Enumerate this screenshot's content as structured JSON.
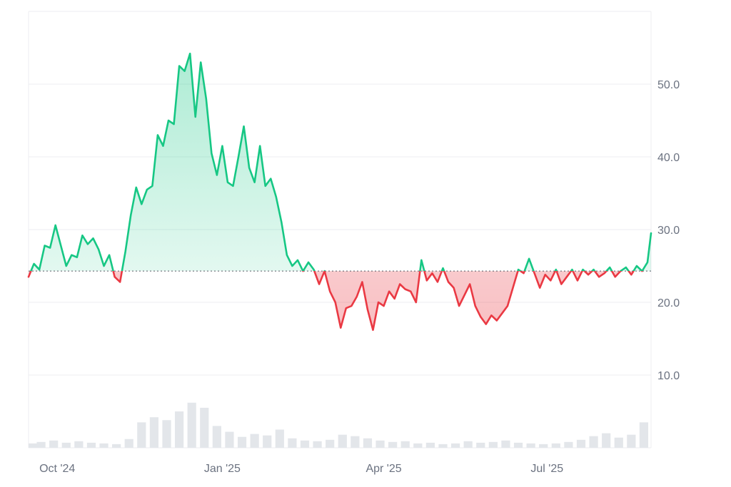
{
  "colors": {
    "up_line": "#16c784",
    "down_line": "#ea3943",
    "up_fill": "#16c784",
    "down_fill": "#ea3943",
    "grid": "#eceef1",
    "baseline": "#555b66",
    "volume": "#e3e6ea",
    "text": "#6b7280"
  },
  "chart_data": {
    "type": "line",
    "baseline": 24.3,
    "ylim": [
      0,
      60
    ],
    "xlim": [
      "2024-09-15",
      "2025-08-28"
    ],
    "grid": true,
    "y_axis_position": "right",
    "y_ticks": [
      {
        "value": 10,
        "label": "10.0"
      },
      {
        "value": 20,
        "label": "20.0"
      },
      {
        "value": 30,
        "label": "30.0"
      },
      {
        "value": 40,
        "label": "40.0"
      },
      {
        "value": 50,
        "label": "50.0"
      }
    ],
    "x_ticks": [
      {
        "date": "2024-10-01",
        "label": "Oct '24"
      },
      {
        "date": "2025-01-01",
        "label": "Jan '25"
      },
      {
        "date": "2025-04-01",
        "label": "Apr '25"
      },
      {
        "date": "2025-07-01",
        "label": "Jul '25"
      }
    ],
    "price_series": {
      "x": [
        "2024-09-15",
        "2024-09-18",
        "2024-09-21",
        "2024-09-24",
        "2024-09-27",
        "2024-09-30",
        "2024-10-03",
        "2024-10-06",
        "2024-10-09",
        "2024-10-12",
        "2024-10-15",
        "2024-10-18",
        "2024-10-21",
        "2024-10-24",
        "2024-10-27",
        "2024-10-30",
        "2024-11-02",
        "2024-11-05",
        "2024-11-08",
        "2024-11-11",
        "2024-11-14",
        "2024-11-17",
        "2024-11-20",
        "2024-11-23",
        "2024-11-26",
        "2024-11-29",
        "2024-12-02",
        "2024-12-05",
        "2024-12-08",
        "2024-12-11",
        "2024-12-14",
        "2024-12-17",
        "2024-12-20",
        "2024-12-23",
        "2024-12-26",
        "2024-12-29",
        "2025-01-01",
        "2025-01-04",
        "2025-01-07",
        "2025-01-10",
        "2025-01-13",
        "2025-01-16",
        "2025-01-19",
        "2025-01-22",
        "2025-01-25",
        "2025-01-28",
        "2025-01-31",
        "2025-02-03",
        "2025-02-06",
        "2025-02-09",
        "2025-02-12",
        "2025-02-15",
        "2025-02-18",
        "2025-02-21",
        "2025-02-24",
        "2025-02-27",
        "2025-03-02",
        "2025-03-05",
        "2025-03-08",
        "2025-03-11",
        "2025-03-14",
        "2025-03-17",
        "2025-03-20",
        "2025-03-23",
        "2025-03-26",
        "2025-03-29",
        "2025-04-01",
        "2025-04-04",
        "2025-04-07",
        "2025-04-10",
        "2025-04-13",
        "2025-04-16",
        "2025-04-19",
        "2025-04-22",
        "2025-04-25",
        "2025-04-28",
        "2025-05-01",
        "2025-05-04",
        "2025-05-07",
        "2025-05-10",
        "2025-05-13",
        "2025-05-16",
        "2025-05-19",
        "2025-05-22",
        "2025-05-25",
        "2025-05-28",
        "2025-05-31",
        "2025-06-03",
        "2025-06-06",
        "2025-06-09",
        "2025-06-12",
        "2025-06-15",
        "2025-06-18",
        "2025-06-21",
        "2025-06-24",
        "2025-06-27",
        "2025-06-30",
        "2025-07-03",
        "2025-07-06",
        "2025-07-09",
        "2025-07-12",
        "2025-07-15",
        "2025-07-18",
        "2025-07-21",
        "2025-07-24",
        "2025-07-27",
        "2025-07-30",
        "2025-08-02",
        "2025-08-05",
        "2025-08-08",
        "2025-08-11",
        "2025-08-14",
        "2025-08-17",
        "2025-08-20",
        "2025-08-23",
        "2025-08-26",
        "2025-08-28"
      ],
      "y": [
        23.5,
        25.3,
        24.5,
        27.8,
        27.5,
        30.6,
        27.8,
        25.0,
        26.5,
        26.2,
        29.2,
        28.0,
        28.8,
        27.3,
        25.0,
        26.5,
        23.5,
        22.8,
        27.0,
        32.0,
        35.8,
        33.5,
        35.5,
        36.0,
        43.0,
        41.5,
        45.0,
        44.5,
        52.5,
        51.8,
        54.2,
        45.5,
        53.0,
        48.0,
        40.5,
        37.5,
        41.5,
        36.5,
        36.0,
        40.0,
        44.2,
        38.5,
        36.5,
        41.5,
        36.0,
        37.0,
        34.5,
        31.0,
        26.5,
        25.0,
        25.8,
        24.3,
        25.5,
        24.5,
        22.5,
        24.3,
        21.5,
        20.0,
        16.5,
        19.2,
        19.5,
        20.8,
        22.8,
        19.0,
        16.2,
        20.0,
        19.5,
        21.5,
        20.5,
        22.5,
        21.8,
        21.5,
        20.0,
        25.8,
        23.0,
        24.0,
        22.8,
        24.7,
        22.8,
        22.0,
        19.5,
        21.0,
        22.5,
        19.5,
        18.0,
        17.0,
        18.2,
        17.5,
        18.5,
        19.5,
        22.0,
        24.5,
        24.0,
        26.0,
        24.0,
        22.0,
        23.8,
        23.0,
        24.5,
        22.5,
        23.5,
        24.5,
        23.0,
        24.5,
        23.8,
        24.5,
        23.5,
        24.0,
        24.8,
        23.5,
        24.3,
        24.8,
        23.8,
        25.0,
        24.3,
        25.5,
        29.5
      ]
    },
    "volume_series": {
      "x": [
        "2024-09-15",
        "2024-09-22",
        "2024-09-29",
        "2024-10-06",
        "2024-10-13",
        "2024-10-20",
        "2024-10-27",
        "2024-11-03",
        "2024-11-10",
        "2024-11-17",
        "2024-11-24",
        "2024-12-01",
        "2024-12-08",
        "2024-12-15",
        "2024-12-22",
        "2024-12-29",
        "2025-01-05",
        "2025-01-12",
        "2025-01-19",
        "2025-01-26",
        "2025-02-02",
        "2025-02-09",
        "2025-02-16",
        "2025-02-23",
        "2025-03-02",
        "2025-03-09",
        "2025-03-16",
        "2025-03-23",
        "2025-03-30",
        "2025-04-06",
        "2025-04-13",
        "2025-04-20",
        "2025-04-27",
        "2025-05-04",
        "2025-05-11",
        "2025-05-18",
        "2025-05-25",
        "2025-06-01",
        "2025-06-08",
        "2025-06-15",
        "2025-06-22",
        "2025-06-29",
        "2025-07-06",
        "2025-07-13",
        "2025-07-20",
        "2025-07-27",
        "2025-08-03",
        "2025-08-10",
        "2025-08-17",
        "2025-08-24"
      ],
      "y": [
        0.6,
        0.8,
        1.0,
        0.7,
        0.9,
        0.7,
        0.6,
        0.5,
        1.2,
        3.5,
        4.2,
        3.8,
        5.0,
        6.2,
        5.5,
        3.0,
        2.2,
        1.5,
        1.9,
        1.7,
        2.5,
        1.3,
        1.0,
        0.9,
        1.1,
        1.8,
        1.6,
        1.3,
        1.0,
        0.8,
        0.9,
        0.6,
        0.7,
        0.5,
        0.6,
        0.9,
        0.7,
        0.8,
        1.0,
        0.7,
        0.6,
        0.5,
        0.6,
        0.8,
        1.1,
        1.6,
        2.0,
        1.4,
        1.8,
        3.5
      ]
    }
  }
}
